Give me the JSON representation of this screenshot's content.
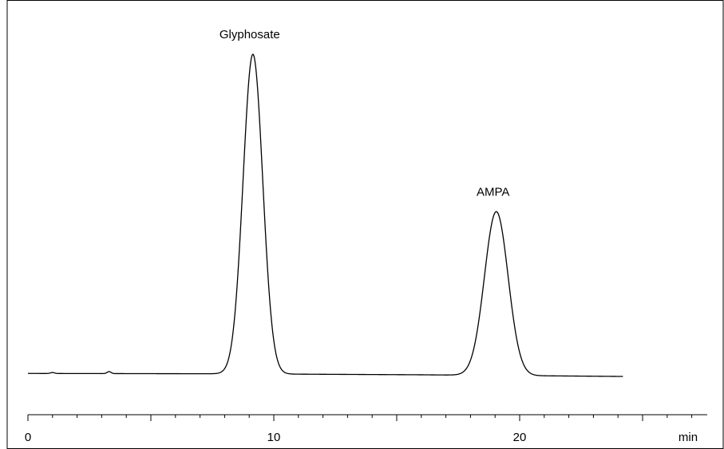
{
  "chart_data": {
    "type": "line",
    "title": "",
    "xlabel": "min",
    "ylabel": "",
    "xlim": [
      0,
      27.5
    ],
    "ylim": [
      0,
      1.0
    ],
    "grid": false,
    "x_ticks": [
      0,
      10,
      20
    ],
    "x_minor_tick_step": 1,
    "series": [
      {
        "signal_end_x": 24.2,
        "baseline": [
          {
            "x": 0.0,
            "y": 0.047
          },
          {
            "x": 8.0,
            "y": 0.046
          },
          {
            "x": 16.0,
            "y": 0.043
          },
          {
            "x": 24.2,
            "y": 0.038
          }
        ],
        "peaks": [
          {
            "label": "Glyphosate",
            "x": 9.15,
            "y": 1.0,
            "sigma": 0.4
          },
          {
            "label": "AMPA",
            "x": 19.05,
            "y": 0.53,
            "sigma": 0.48
          }
        ],
        "minor_bumps": [
          {
            "x": 1.0,
            "y": 0.003,
            "sigma": 0.08
          },
          {
            "x": 3.3,
            "y": 0.006,
            "sigma": 0.08
          }
        ]
      }
    ]
  }
}
